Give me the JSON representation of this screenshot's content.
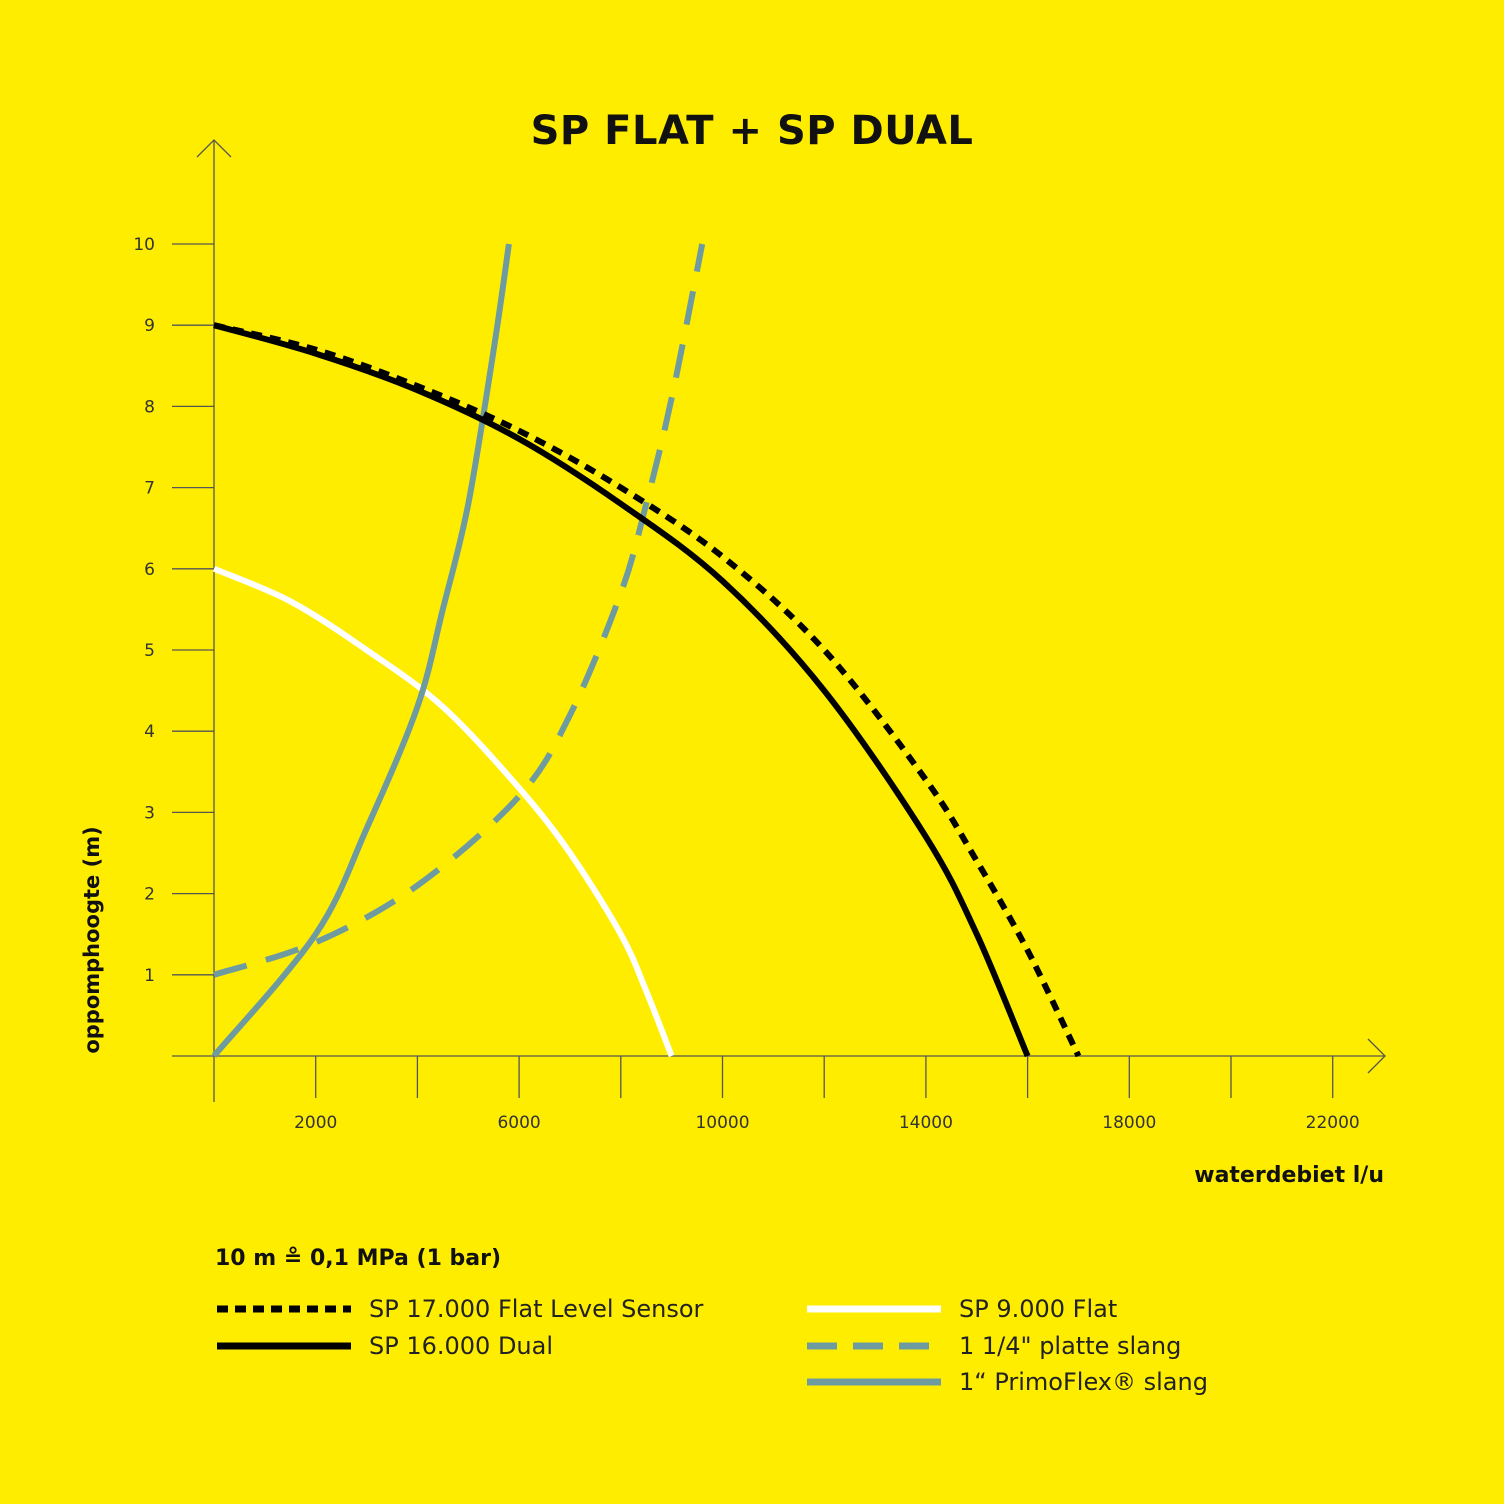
{
  "chart_data": {
    "type": "line",
    "title": "SP FLAT + SP DUAL",
    "xlabel": "waterdebiet l/u",
    "ylabel": "oppomphoogte (m)",
    "note": "10 m ≗ 0,1 MPa (1 bar)",
    "xlim": [
      0,
      23000
    ],
    "ylim": [
      0,
      10
    ],
    "x_ticks": [
      2000,
      6000,
      10000,
      14000,
      18000,
      22000
    ],
    "x_minor_ticks": [
      4000,
      8000,
      12000,
      16000,
      20000
    ],
    "y_ticks": [
      1,
      2,
      3,
      4,
      5,
      6,
      7,
      8,
      9,
      10
    ],
    "grid": false,
    "series": [
      {
        "name": "SP 17.000 Flat Level Sensor",
        "color": "#000000",
        "style": "dotted",
        "x": [
          0,
          2000,
          4000,
          6000,
          8000,
          10000,
          12000,
          14000,
          15000,
          16000,
          17000
        ],
        "y": [
          9.0,
          8.7,
          8.25,
          7.7,
          7.0,
          6.15,
          5.0,
          3.4,
          2.4,
          1.3,
          0.0
        ]
      },
      {
        "name": "SP 16.000 Dual",
        "color": "#000000",
        "style": "solid",
        "x": [
          0,
          2000,
          4000,
          6000,
          8000,
          10000,
          12000,
          14000,
          15000,
          16000
        ],
        "y": [
          9.0,
          8.65,
          8.2,
          7.6,
          6.8,
          5.85,
          4.5,
          2.7,
          1.5,
          0.0
        ]
      },
      {
        "name": "SP 9.000 Flat",
        "color": "#FFFFFF",
        "style": "solid",
        "x": [
          0,
          1500,
          3000,
          4500,
          6000,
          7000,
          8000,
          8500,
          9000
        ],
        "y": [
          6.0,
          5.6,
          5.0,
          4.3,
          3.3,
          2.5,
          1.5,
          0.8,
          0.0
        ]
      },
      {
        "name": "1 1/4\" platte slang",
        "color": "#6E9BA0",
        "style": "dashed",
        "x": [
          0,
          2000,
          4000,
          6000,
          7000,
          8000,
          8500,
          9000,
          9600
        ],
        "y": [
          1.0,
          1.4,
          2.1,
          3.2,
          4.2,
          5.7,
          6.8,
          8.1,
          10.0
        ]
      },
      {
        "name": "1“ PrimoFlex® slang",
        "color": "#6E9BA0",
        "style": "solid",
        "x": [
          0,
          2000,
          3000,
          4000,
          4500,
          5000,
          5500,
          5800
        ],
        "y": [
          0.0,
          1.5,
          2.8,
          4.3,
          5.5,
          6.8,
          8.7,
          10.0
        ]
      }
    ],
    "legend": {
      "left": [
        "SP 17.000 Flat Level Sensor",
        "SP 16.000 Dual"
      ],
      "right": [
        "SP 9.000 Flat",
        "1 1/4\" platte slang",
        "1“ PrimoFlex® slang"
      ]
    }
  },
  "colors": {
    "background": "#FFED00",
    "axis": "#555555",
    "hose": "#6E9BA0",
    "ink": "#000000",
    "white": "#FFFFFF"
  }
}
